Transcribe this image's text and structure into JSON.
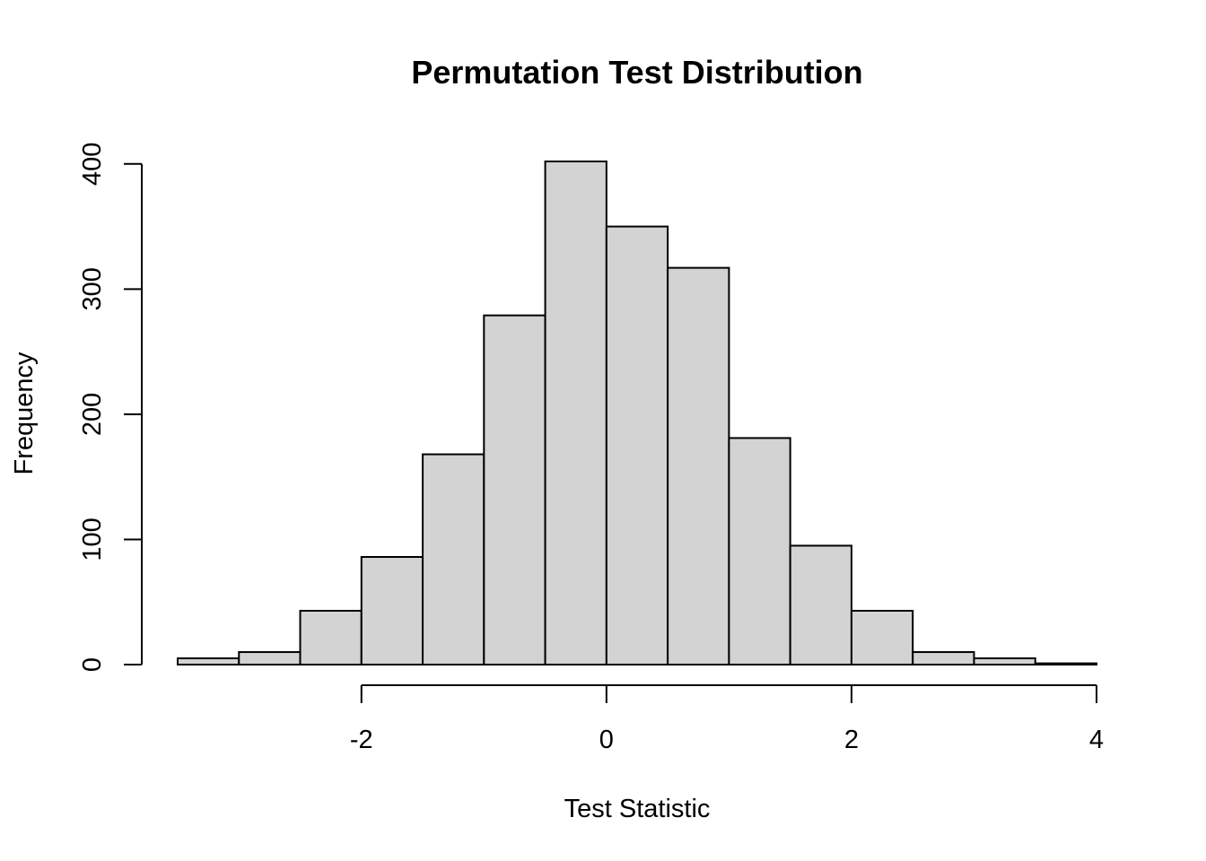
{
  "chart_data": {
    "type": "bar",
    "title": "Permutation Test Distribution",
    "xlabel": "Test Statistic",
    "ylabel": "Frequency",
    "bin_edges": [
      -3.5,
      -3.0,
      -2.5,
      -2.0,
      -1.5,
      -1.0,
      -0.5,
      0.0,
      0.5,
      1.0,
      1.5,
      2.0,
      2.5,
      3.0,
      3.5,
      4.0
    ],
    "values": [
      5,
      10,
      43,
      86,
      168,
      279,
      402,
      350,
      317,
      181,
      95,
      43,
      10,
      5,
      1
    ],
    "xlim": [
      -3.5,
      4.0
    ],
    "ylim": [
      0,
      402
    ],
    "x_ticks": [
      -2,
      0,
      2,
      4
    ],
    "x_tick_labels": [
      "-2",
      "0",
      "2",
      "4"
    ],
    "y_ticks": [
      0,
      100,
      200,
      300,
      400
    ],
    "y_tick_labels": [
      "0",
      "100",
      "200",
      "300",
      "400"
    ],
    "grid": false,
    "bar_fill": "#d3d3d3",
    "bar_stroke": "#000000"
  }
}
